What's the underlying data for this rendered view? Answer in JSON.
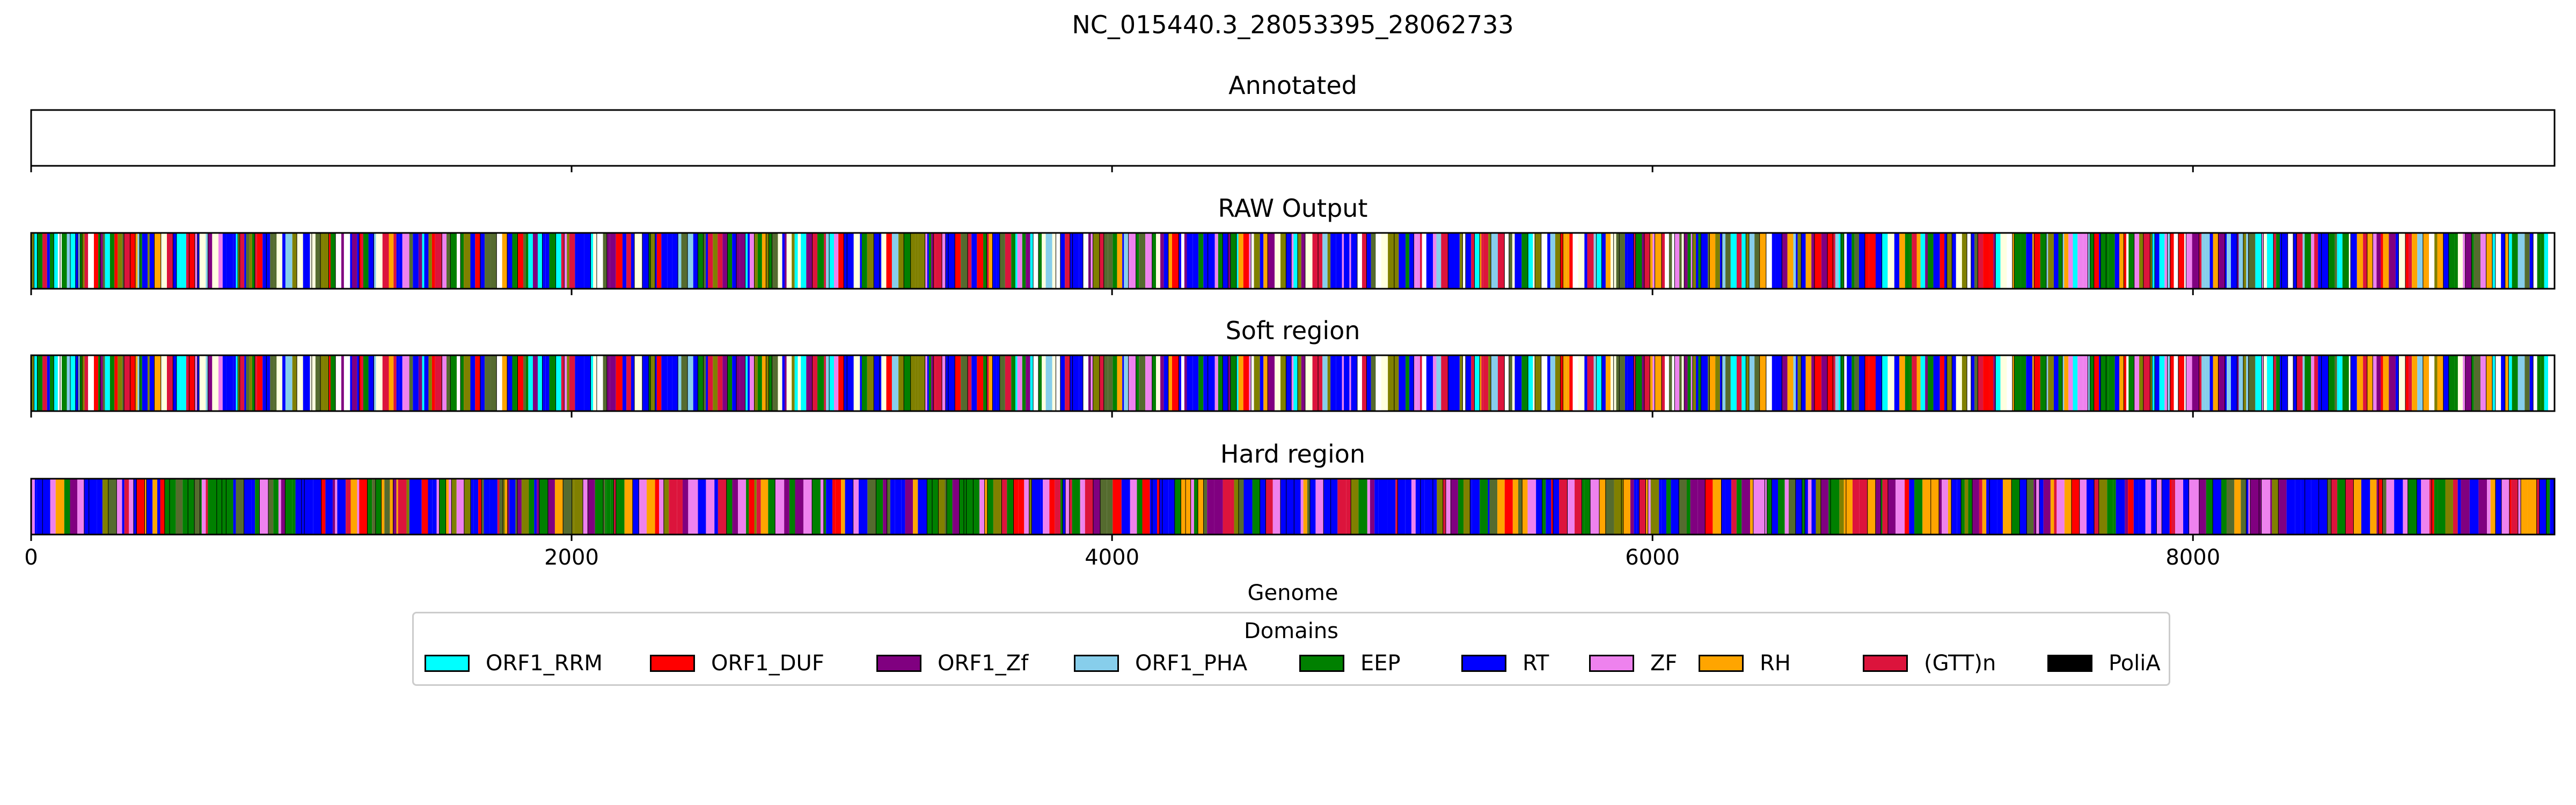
{
  "figure_title": "NC_015440.3_28053395_28062733",
  "chart_data": {
    "type": "track",
    "title": "NC_015440.3_28053395_28062733",
    "xlabel": "Genome",
    "xlim": [
      0,
      9338
    ],
    "xticks": [
      0,
      2000,
      4000,
      6000,
      8000
    ],
    "xtick_labels": [
      "0",
      "2000",
      "4000",
      "6000",
      "8000"
    ],
    "grid": false,
    "legend_placement": "bottom-center",
    "tracks": [
      {
        "title": "Annotated",
        "segments": []
      },
      {
        "title": "RAW Output",
        "pattern_seed": 17
      },
      {
        "title": "Soft region",
        "pattern_seed": 17
      },
      {
        "title": "Hard region",
        "pattern_seed": 91
      }
    ],
    "legend": {
      "title": "Domains",
      "items": [
        {
          "label": "ORF1_RRM",
          "color": "#00ffff"
        },
        {
          "label": "ORF1_DUF",
          "color": "#ff0000"
        },
        {
          "label": "ORF1_Zf",
          "color": "#800080"
        },
        {
          "label": "ORF1_PHA",
          "color": "#87ceeb"
        },
        {
          "label": "EEP",
          "color": "#008000"
        },
        {
          "label": "RT",
          "color": "#0000ff"
        },
        {
          "label": "ZF",
          "color": "#ee82ee"
        },
        {
          "label": "RH",
          "color": "#ffa500"
        },
        {
          "label": "(GTT)n",
          "color": "#dc143c"
        },
        {
          "label": "PoliA",
          "color": "#000000"
        }
      ]
    }
  }
}
